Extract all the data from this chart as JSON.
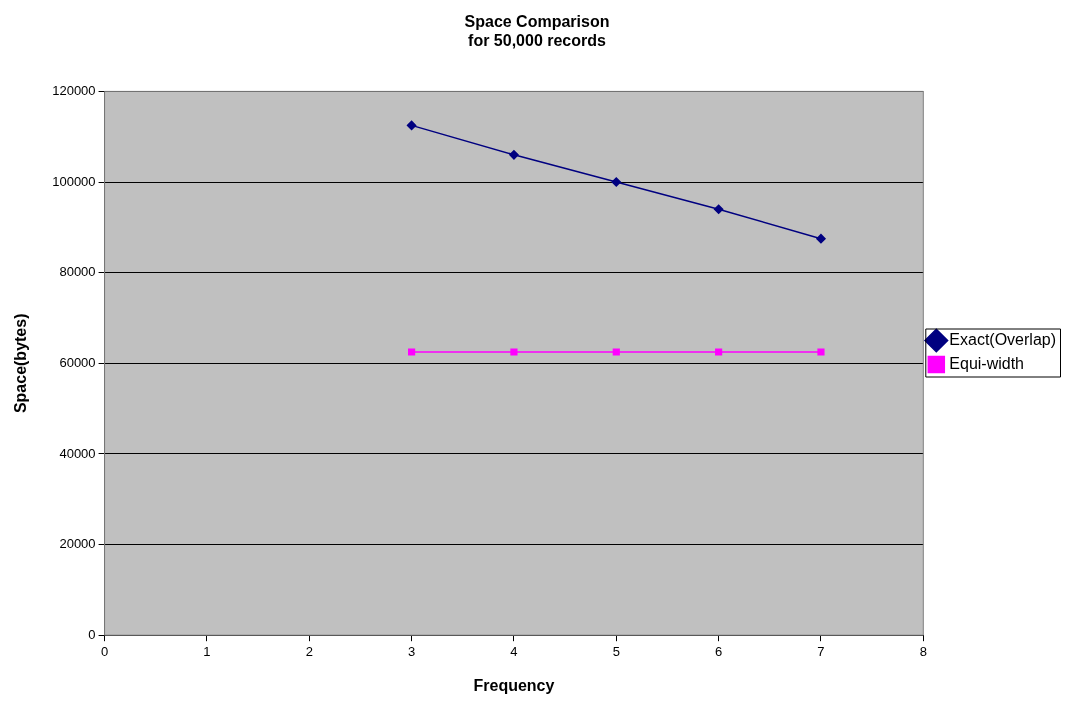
{
  "chart_data": {
    "type": "line",
    "title": "Space Comparison",
    "subtitle": "for 50,000 records",
    "xlabel": "Frequency",
    "ylabel": "Space(bytes)",
    "xlim": [
      0,
      8
    ],
    "xticks": [
      0,
      1,
      2,
      3,
      4,
      5,
      6,
      7,
      8
    ],
    "ylim": [
      0,
      120000
    ],
    "yticks": [
      0,
      20000,
      40000,
      60000,
      80000,
      100000,
      120000
    ],
    "grid": "y",
    "legend": "right",
    "line_style": "solid",
    "series": [
      {
        "name": "Exact(Overlap)",
        "color": "#000080",
        "marker": "diamond",
        "x": [
          3,
          4,
          5,
          6,
          7
        ],
        "values": [
          112500,
          106000,
          100000,
          94000,
          87500
        ]
      },
      {
        "name": "Equi-width",
        "color": "#ff00ff",
        "marker": "square",
        "x": [
          3,
          4,
          5,
          6,
          7
        ],
        "values": [
          62500,
          62500,
          62500,
          62500,
          62500
        ]
      }
    ]
  }
}
